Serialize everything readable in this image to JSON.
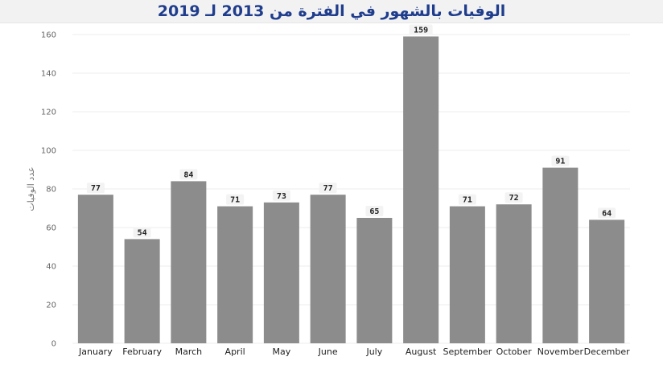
{
  "chart_data": {
    "type": "bar",
    "title": "الوفيات بالشهور في الفترة من 2013 لـ 2019",
    "xlabel": "",
    "ylabel": "عدد الوفيات",
    "categories": [
      "January",
      "February",
      "March",
      "April",
      "May",
      "June",
      "July",
      "August",
      "September",
      "October",
      "November",
      "December"
    ],
    "values": [
      77,
      54,
      84,
      71,
      73,
      77,
      65,
      159,
      71,
      72,
      91,
      64
    ],
    "ylim": [
      0,
      160
    ],
    "yticks": [
      0,
      20,
      40,
      60,
      80,
      100,
      120,
      140,
      160
    ],
    "grid": true,
    "bar_color": "#8c8c8c",
    "title_color": "#1f3d8c"
  }
}
